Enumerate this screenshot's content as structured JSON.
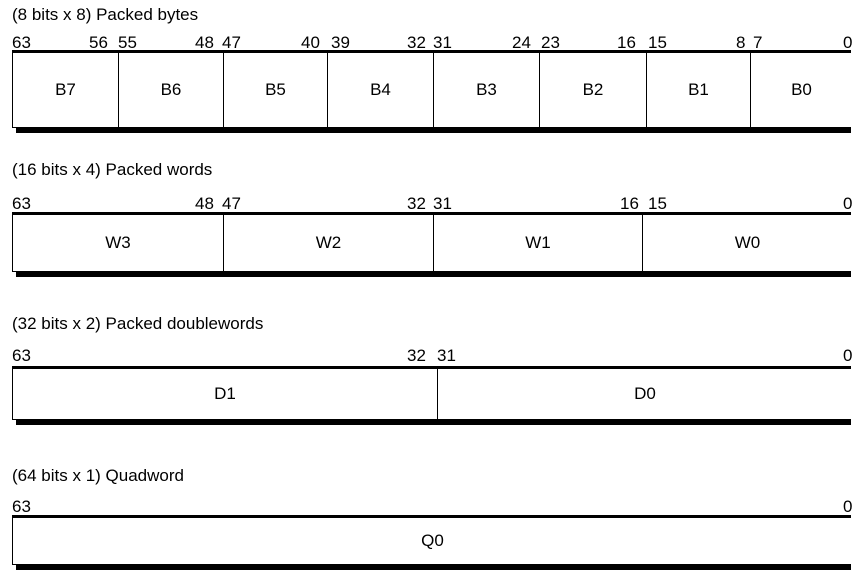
{
  "sections": [
    {
      "title": "(8 bits x 8) Packed bytes",
      "bit_labels": [
        "63",
        "56",
        "55",
        "48",
        "47",
        "40",
        "39",
        "32",
        "31",
        "24",
        "23",
        "16",
        "15",
        "8",
        "7",
        "0"
      ],
      "cells": [
        "B7",
        "B6",
        "B5",
        "B4",
        "B3",
        "B2",
        "B1",
        "B0"
      ]
    },
    {
      "title": "(16 bits x 4) Packed words",
      "bit_labels": [
        "63",
        "48",
        "47",
        "32",
        "31",
        "16",
        "15",
        "0"
      ],
      "cells": [
        "W3",
        "W2",
        "W1",
        "W0"
      ]
    },
    {
      "title": "(32 bits x 2) Packed doublewords",
      "bit_labels": [
        "63",
        "32",
        "31",
        "0"
      ],
      "cells": [
        "D1",
        "D0"
      ]
    },
    {
      "title": "(64 bits x 1) Quadword",
      "bit_labels": [
        "63",
        "0"
      ],
      "cells": [
        "Q0"
      ]
    }
  ]
}
